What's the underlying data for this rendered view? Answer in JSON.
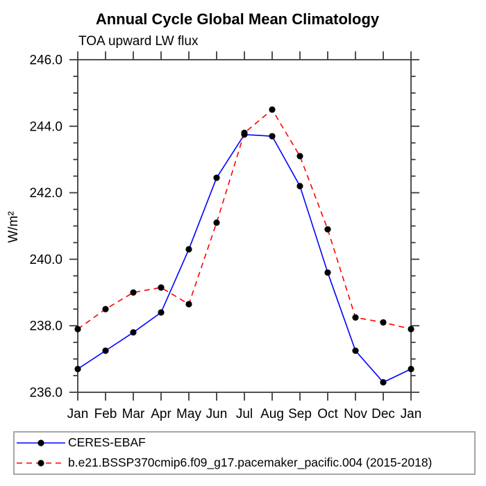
{
  "title": "Annual Cycle Global Mean Climatology",
  "subtitle": "TOA upward LW flux",
  "y_axis_label": "W/m²",
  "colors": {
    "axis": "#3c3c3c",
    "text": "#000000",
    "legend_border": "#a6a6a6",
    "series_blue": "#0000ff",
    "series_red": "#ff0000",
    "marker": "#000000"
  },
  "chart_data": {
    "type": "line",
    "title": "Annual Cycle Global Mean Climatology",
    "subtitle": "TOA upward LW flux",
    "ylabel": "W/m²",
    "xlabel": "",
    "categories": [
      "Jan",
      "Feb",
      "Mar",
      "Apr",
      "May",
      "Jun",
      "Jul",
      "Aug",
      "Sep",
      "Oct",
      "Nov",
      "Dec",
      "Jan"
    ],
    "series": [
      {
        "name": "CERES-EBAF",
        "color": "#0000ff",
        "line_style": "solid",
        "marker": "circle",
        "marker_color": "#000000",
        "values": [
          236.7,
          237.25,
          237.8,
          238.4,
          240.3,
          242.45,
          243.75,
          243.7,
          242.2,
          239.6,
          237.25,
          236.3,
          236.7
        ]
      },
      {
        "name": "b.e21.BSSP370cmip6.f09_g17.pacemaker_pacific.004 (2015-2018)",
        "color": "#ff0000",
        "line_style": "dashed",
        "marker": "circle",
        "marker_color": "#000000",
        "values": [
          237.9,
          238.5,
          239.0,
          239.15,
          238.65,
          241.1,
          243.8,
          244.5,
          243.1,
          240.9,
          238.25,
          238.1,
          237.9
        ]
      }
    ],
    "ylim": [
      236.0,
      246.0
    ],
    "ytick_major_interval": 2.0,
    "ytick_minor_interval": 0.5,
    "ytick_labels": [
      "236.0",
      "238.0",
      "240.0",
      "242.0",
      "244.0",
      "246.0"
    ],
    "grid": false,
    "legend_position": "bottom"
  }
}
